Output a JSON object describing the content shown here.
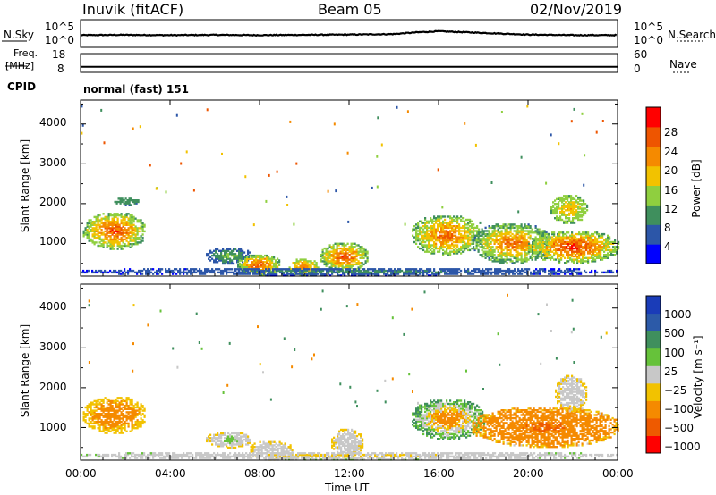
{
  "header": {
    "left": "Inuvik (fitACF)",
    "center": "Beam 05",
    "right": "02/Nov/2019"
  },
  "noise_panel": {
    "left_label": "N.Sky",
    "right_label": "N.Search",
    "left_ticks": [
      "10^5",
      "10^0"
    ],
    "right_ticks": [
      "10^5",
      "10^0"
    ]
  },
  "freq_panel": {
    "left_label_1": "Freq.",
    "left_label_2": "[MHz]",
    "right_label": "Nave",
    "left_ticks": [
      "18",
      "8"
    ],
    "right_ticks": [
      "60",
      "0"
    ]
  },
  "cpid": {
    "label": "CPID",
    "value": "normal (fast) 151"
  },
  "x_axis": {
    "label": "Time UT",
    "ticks": [
      "00:00",
      "04:00",
      "08:00",
      "12:00",
      "16:00",
      "20:00",
      "00:00"
    ]
  },
  "power_panel": {
    "ylabel": "Slant Range [km]",
    "yticks": [
      "1000",
      "2000",
      "3000",
      "4000"
    ],
    "colorbar_label": "Power [dB]",
    "colorbar_ticks": [
      "4",
      "8",
      "12",
      "16",
      "20",
      "24",
      "28"
    ],
    "colors": [
      "#0000ff",
      "#2c56a8",
      "#3f8f5d",
      "#8fcf3f",
      "#f2c200",
      "#f58a00",
      "#ee5500",
      "#ff0000"
    ]
  },
  "velocity_panel": {
    "ylabel": "Slant Range [km]",
    "yticks": [
      "1000",
      "2000",
      "3000",
      "4000"
    ],
    "colorbar_label": "Velocity [m s⁻¹]",
    "colorbar_ticks": [
      "1000",
      "500",
      "100",
      "25",
      "−25",
      "−100",
      "−500",
      "−1000"
    ],
    "colors": [
      "#1a3cb8",
      "#2c5aa8",
      "#3f8f5d",
      "#66c23a",
      "#c8c8c8",
      "#f2c200",
      "#f58a00",
      "#ee5a00",
      "#ff0000"
    ]
  },
  "chart_data": {
    "type": "heatmap",
    "x_range_hours": [
      0,
      24
    ],
    "y_range_km": [
      180,
      4600
    ],
    "noise_series": {
      "name": "N.Sky",
      "hours": [
        0,
        2,
        4,
        6,
        8,
        10,
        12,
        14,
        15,
        16,
        18,
        20,
        22,
        24
      ],
      "log10_values": [
        2.2,
        2.25,
        2.2,
        2.25,
        2.2,
        2.25,
        2.3,
        2.4,
        2.7,
        2.9,
        2.6,
        2.3,
        2.2,
        2.2
      ]
    },
    "freq_series": {
      "name": "Freq.",
      "hours": [
        0,
        24
      ],
      "mhz": [
        11,
        11
      ],
      "nave_hours": [
        0,
        24
      ],
      "nave": [
        18,
        18
      ]
    },
    "power_regions": [
      {
        "t": [
          0.1,
          2.9
        ],
        "r": [
          850,
          1750
        ],
        "core": 28,
        "edge": 12
      },
      {
        "t": [
          1.5,
          2.6
        ],
        "r": [
          1950,
          2150
        ],
        "core": 12,
        "edge": 8
      },
      {
        "t": [
          5.6,
          7.6
        ],
        "r": [
          480,
          880
        ],
        "core": 14,
        "edge": 6
      },
      {
        "t": [
          7.0,
          8.9
        ],
        "r": [
          200,
          700
        ],
        "core": 28,
        "edge": 12
      },
      {
        "t": [
          9.3,
          10.6
        ],
        "r": [
          180,
          600
        ],
        "core": 24,
        "edge": 14
      },
      {
        "t": [
          10.7,
          12.8
        ],
        "r": [
          300,
          1000
        ],
        "core": 28,
        "edge": 12
      },
      {
        "t": [
          14.8,
          17.8
        ],
        "r": [
          700,
          1700
        ],
        "core": 26,
        "edge": 12
      },
      {
        "t": [
          17.5,
          21.0
        ],
        "r": [
          500,
          1500
        ],
        "core": 26,
        "edge": 10
      },
      {
        "t": [
          20.0,
          24.0
        ],
        "r": [
          500,
          1300
        ],
        "core": 30,
        "edge": 12
      },
      {
        "t": [
          21.0,
          22.6
        ],
        "r": [
          1500,
          2200
        ],
        "core": 20,
        "edge": 12
      },
      {
        "t": [
          0.0,
          24.0
        ],
        "r": [
          180,
          380
        ],
        "core": 10,
        "edge": 4
      }
    ],
    "velocity_regions": [
      {
        "t": [
          0.1,
          2.9
        ],
        "r": [
          850,
          1750
        ],
        "core": -120,
        "edge": -40
      },
      {
        "t": [
          5.6,
          7.6
        ],
        "r": [
          480,
          880
        ],
        "core": 60,
        "edge": -30
      },
      {
        "t": [
          7.5,
          9.5
        ],
        "r": [
          180,
          650
        ],
        "core": 5,
        "edge": -30
      },
      {
        "t": [
          11.2,
          12.6
        ],
        "r": [
          250,
          950
        ],
        "core": 10,
        "edge": -30
      },
      {
        "t": [
          14.8,
          18.0
        ],
        "r": [
          700,
          1700
        ],
        "core": -150,
        "edge": 80
      },
      {
        "t": [
          17.5,
          24.0
        ],
        "r": [
          500,
          1500
        ],
        "core": -350,
        "edge": -60
      },
      {
        "t": [
          21.2,
          22.6
        ],
        "r": [
          1400,
          2300
        ],
        "core": 5,
        "edge": -30
      },
      {
        "t": [
          0.0,
          24.0
        ],
        "r": [
          180,
          380
        ],
        "core": -40,
        "edge": 20
      }
    ]
  }
}
